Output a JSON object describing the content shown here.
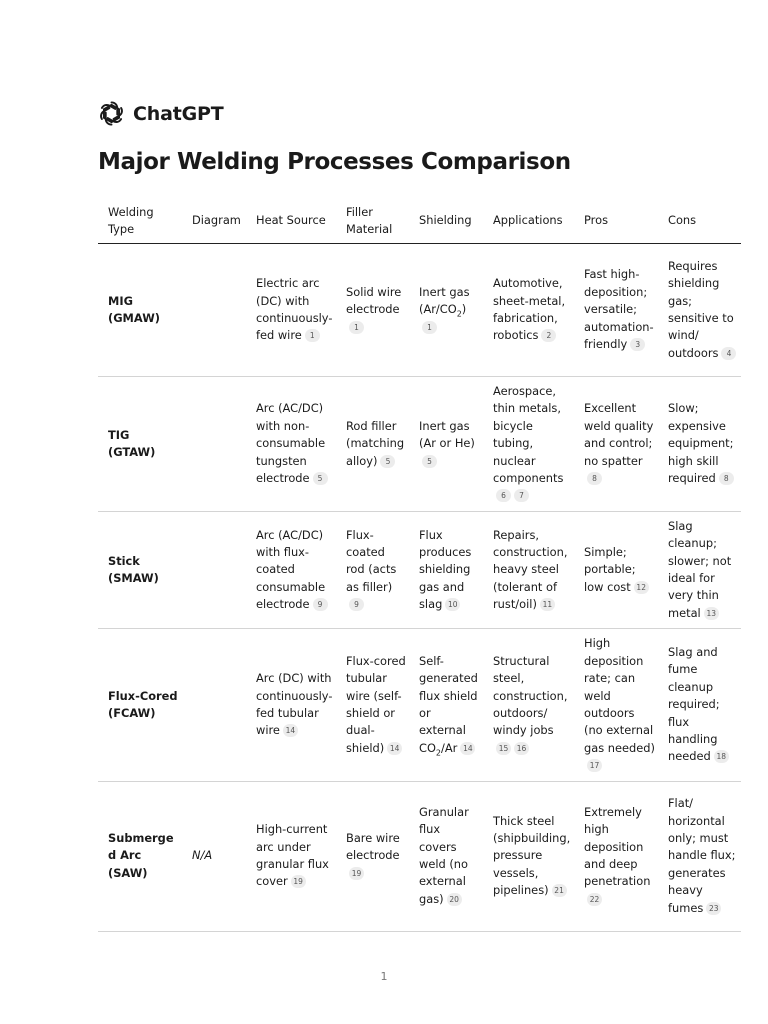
{
  "brand": {
    "name": "ChatGPT",
    "logo_icon": "openai-logo-icon"
  },
  "document": {
    "title": "Major Welding Processes Comparison",
    "page_number": "1"
  },
  "table": {
    "headers": [
      "Welding Type",
      "Diagram",
      "Heat Source",
      "Filler Material",
      "Shielding",
      "Applications",
      "Pros",
      "Cons"
    ],
    "rows": [
      {
        "type": "MIG (GMAW)",
        "diagram": "",
        "heat": {
          "text": "Electric arc (DC) with continuously-fed wire",
          "cites": [
            "1"
          ]
        },
        "filler": {
          "text": "Solid wire electrode",
          "cites": [
            "1"
          ]
        },
        "shielding": {
          "pre": "Inert gas (Ar/CO",
          "sub": "2",
          "post": ")",
          "cites": [
            "1"
          ]
        },
        "applications": {
          "text": "Automotive, sheet-metal, fabrication, robotics",
          "cites": [
            "2"
          ]
        },
        "pros": {
          "text": "Fast high-deposition; versatile; automation-friendly",
          "cites": [
            "3"
          ]
        },
        "cons": {
          "text": "Requires shielding gas; sensitive to wind/ outdoors",
          "cites": [
            "4"
          ]
        }
      },
      {
        "type": "TIG (GTAW)",
        "diagram": "",
        "heat": {
          "text": "Arc (AC/DC) with non-consumable tungsten electrode",
          "cites": [
            "5"
          ]
        },
        "filler": {
          "text": "Rod filler (matching alloy)",
          "cites": [
            "5"
          ]
        },
        "shielding": {
          "pre": "Inert gas (Ar or He)",
          "sub": "",
          "post": "",
          "cites": [
            "5"
          ]
        },
        "applications": {
          "text": "Aerospace, thin metals, bicycle tubing, nuclear components",
          "cites": [
            "6",
            "7"
          ]
        },
        "pros": {
          "text": "Excellent weld quality and control; no spatter",
          "cites": [
            "8"
          ]
        },
        "cons": {
          "text": "Slow; expensive equipment; high skill required",
          "cites": [
            "8"
          ]
        }
      },
      {
        "type": "Stick (SMAW)",
        "diagram": "",
        "heat": {
          "text": "Arc (AC/DC) with flux-coated consumable electrode",
          "cites": [
            "9"
          ]
        },
        "filler": {
          "text": "Flux-coated rod (acts as filler)",
          "cites": [
            "9"
          ]
        },
        "shielding": {
          "pre": "Flux produces shielding gas and slag",
          "sub": "",
          "post": "",
          "cites": [
            "10"
          ]
        },
        "applications": {
          "text": "Repairs, construction, heavy steel (tolerant of rust/oil)",
          "cites": [
            "11"
          ]
        },
        "pros": {
          "text": "Simple; portable; low cost",
          "cites": [
            "12"
          ]
        },
        "cons": {
          "text": "Slag cleanup; slower; not ideal for very thin metal",
          "cites": [
            "13"
          ]
        }
      },
      {
        "type": "Flux-Cored (FCAW)",
        "diagram": "",
        "heat": {
          "text": "Arc (DC) with continuously-fed tubular wire",
          "cites": [
            "14"
          ]
        },
        "filler": {
          "text": "Flux-cored tubular wire (self-shield or dual-shield)",
          "cites": [
            "14"
          ]
        },
        "shielding": {
          "pre": "Self-generated flux shield or external CO",
          "sub": "2",
          "post": "/Ar",
          "cites": [
            "14"
          ]
        },
        "applications": {
          "text": "Structural steel, construction, outdoors/ windy jobs",
          "cites": [
            "15",
            "16"
          ]
        },
        "pros": {
          "text": "High deposition rate; can weld outdoors (no external gas needed)",
          "cites": [
            "17"
          ]
        },
        "cons": {
          "text": "Slag and fume cleanup required; flux handling needed",
          "cites": [
            "18"
          ]
        }
      },
      {
        "type": "Submerged Arc (SAW)",
        "diagram": "N/A",
        "heat": {
          "text": "High-current arc under granular flux cover",
          "cites": [
            "19"
          ]
        },
        "filler": {
          "text": "Bare wire electrode",
          "cites": [
            "19"
          ]
        },
        "shielding": {
          "pre": "Granular flux covers weld (no external gas)",
          "sub": "",
          "post": "",
          "cites": [
            "20"
          ]
        },
        "applications": {
          "text": "Thick steel (shipbuilding, pressure vessels, pipelines)",
          "cites": [
            "21"
          ]
        },
        "pros": {
          "text": "Extremely high deposition and deep penetration",
          "cites": [
            "22"
          ]
        },
        "cons": {
          "text": "Flat/ horizontal only; must handle flux; generates heavy fumes",
          "cites": [
            "23"
          ]
        }
      }
    ]
  }
}
